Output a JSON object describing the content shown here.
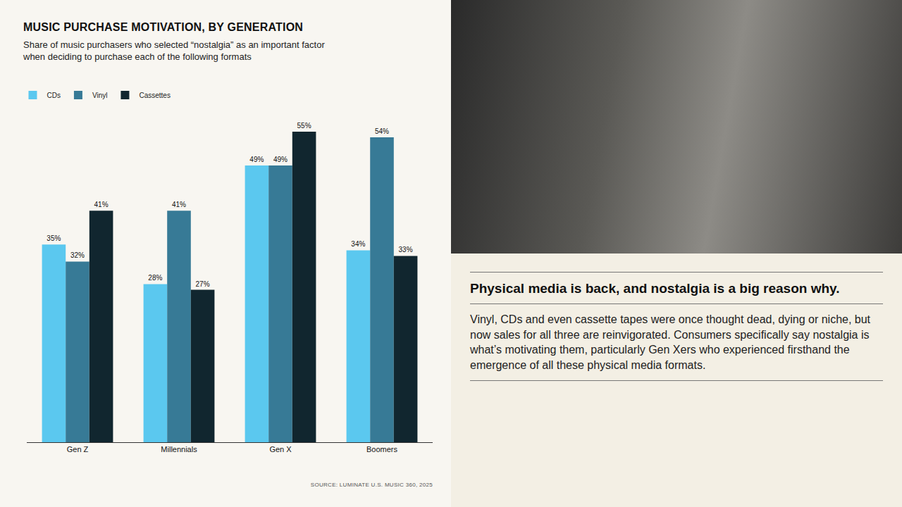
{
  "chart_data": {
    "type": "bar",
    "title": "MUSIC PURCHASE MOTIVATION, BY GENERATION",
    "subtitle": "Share of music purchasers who selected “nostalgia” as an important factor when deciding to purchase each of the following formats",
    "source": "SOURCE: LUMINATE U.S. MUSIC 360, 2025",
    "categories": [
      "Gen Z",
      "Millennials",
      "Gen X",
      "Boomers"
    ],
    "series": [
      {
        "name": "CDs",
        "color": "#5bc8ef",
        "values": [
          35,
          28,
          49,
          34
        ],
        "value_labels": [
          "35%",
          "28%",
          "49%",
          "34%"
        ]
      },
      {
        "name": "Vinyl",
        "color": "#377a96",
        "values": [
          32,
          41,
          49,
          54
        ],
        "value_labels": [
          "32%",
          "41%",
          "49%",
          "54%"
        ]
      },
      {
        "name": "Cassettes",
        "color": "#11262f",
        "values": [
          41,
          27,
          55,
          33
        ],
        "value_labels": [
          "41%",
          "27%",
          "55%",
          "33%"
        ]
      }
    ],
    "ylim": [
      0,
      55
    ],
    "grid": false,
    "legend": "top-left",
    "data_labels": true,
    "tick_labels": "x"
  },
  "text_panel": {
    "heading": "Physical media is back, and nostalgia is a big reason why.",
    "body": "Vinyl, CDs and even cassette tapes were once thought dead, dying or niche, but now sales for all three are reinvigorated. Consumers specifically say nostalgia is what’s motivating them, particularly Gen Xers who experienced firsthand the emergence of all these physical media formats."
  }
}
